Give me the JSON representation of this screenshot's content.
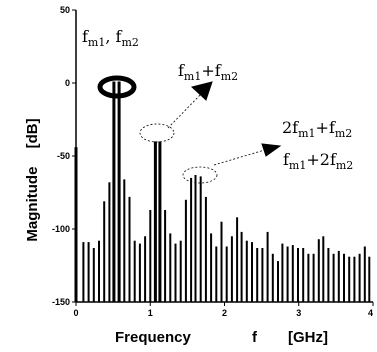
{
  "chart_data": {
    "type": "bar",
    "title": "",
    "xlabel": {
      "name": "Frequency",
      "symbol": "f",
      "unit": "[GHz]"
    },
    "ylabel": {
      "name": "Magnitude",
      "unit": "[dB]"
    },
    "xlim": [
      0,
      4
    ],
    "ylim": [
      -150,
      50
    ],
    "xticks": [
      "0",
      "1",
      "2",
      "3",
      "4"
    ],
    "yticks": [
      "50",
      "0",
      "-50",
      "-100",
      "-150"
    ],
    "grid": false,
    "legend": "none",
    "baseline": -150,
    "bar_color": "#000000",
    "series": [
      {
        "x": [
          0.0,
          0.1,
          0.17,
          0.24,
          0.31,
          0.38,
          0.45,
          0.51,
          0.58,
          0.65,
          0.72,
          0.79,
          0.86,
          0.93,
          1.0,
          1.07,
          1.13,
          1.2,
          1.27,
          1.34,
          1.41,
          1.48,
          1.55,
          1.61,
          1.68,
          1.75,
          1.82,
          1.89,
          1.96,
          2.03,
          2.1,
          2.17,
          2.23,
          2.3,
          2.37,
          2.44,
          2.51,
          2.58,
          2.65,
          2.72,
          2.78,
          2.85,
          2.92,
          2.99,
          3.06,
          3.13,
          3.2,
          3.27,
          3.33,
          3.4,
          3.47,
          3.54,
          3.61,
          3.68,
          3.75,
          3.82,
          3.89,
          3.95
        ],
        "y": [
          -44,
          -109,
          -109,
          -113,
          -108,
          -81,
          -68,
          1,
          1,
          -66,
          -78,
          -108,
          -110,
          -105,
          -87,
          -40,
          -40,
          -87,
          -103,
          -110,
          -108,
          -80,
          -65,
          -63,
          -64,
          -78,
          -103,
          -112,
          -95,
          -112,
          -105,
          -92,
          -102,
          -108,
          -109,
          -113,
          -113,
          -102,
          -117,
          -122,
          -110,
          -112,
          -111,
          -113,
          -113,
          -117,
          -117,
          -107,
          -105,
          -113,
          -117,
          -115,
          -117,
          -119,
          -119,
          -117,
          -112,
          -119
        ]
      }
    ],
    "annotations": [
      {
        "text": "f",
        "sub": "m1",
        "text2": ",  f",
        "sub2": "m2"
      },
      {
        "text": "f",
        "sub": "m1",
        "text2": "+f",
        "sub2": "m2"
      },
      {
        "text": "2f",
        "sub": "m1",
        "text2": "+f",
        "sub2": "m2"
      },
      {
        "text": "f",
        "sub": "m1",
        "text2": "+2f",
        "sub2": "m2"
      }
    ]
  }
}
